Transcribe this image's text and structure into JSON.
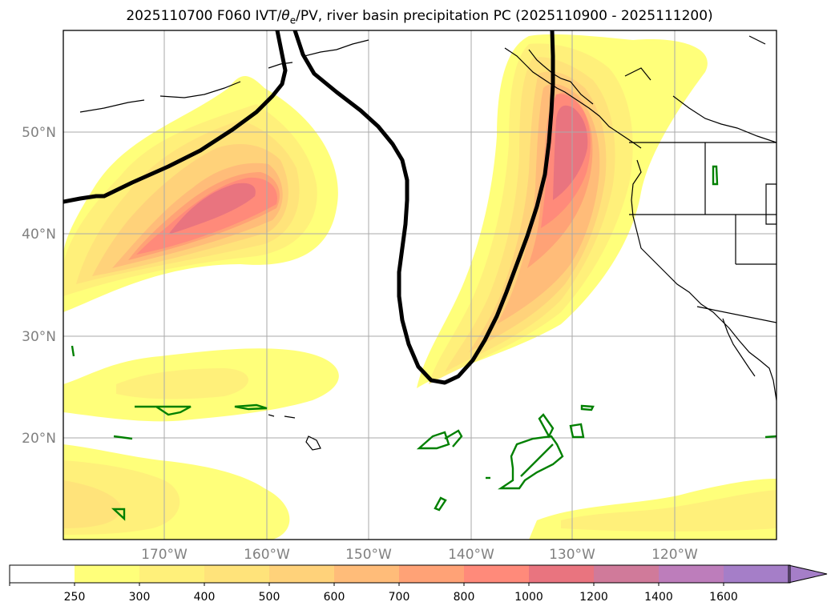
{
  "map": {
    "title": "2025110700 F060 IVT/θe/PV, river basin precipitation PC (2025110900 - 2025111200)",
    "title_parts": {
      "pre": "2025110700 F060 IVT/",
      "theta": "θ",
      "sub": "e",
      "post": "/PV, river basin precipitation PC (2025110900 - 2025111200)"
    },
    "extent": {
      "lon_min": -180,
      "lon_max": -110,
      "lat_min": 10,
      "lat_max": 60
    },
    "longitude_labels": [
      "170°W",
      "160°W",
      "150°W",
      "140°W",
      "130°W",
      "120°W"
    ],
    "latitude_labels": [
      "50°N",
      "40°N",
      "30°N",
      "20°N"
    ],
    "layers": [
      "IVT filled contours",
      "theta-e / PV contour (black)",
      "river basin precipitation contour (green)",
      "coastlines and borders"
    ]
  },
  "colorbar": {
    "ticks": [
      "250",
      "300",
      "400",
      "500",
      "600",
      "700",
      "800",
      "1000",
      "1200",
      "1400",
      "1600"
    ],
    "colors": [
      "#ffffff",
      "#ffff7a",
      "#fff07a",
      "#ffe37a",
      "#ffd27a",
      "#ffbc79",
      "#ffa276",
      "#ff8a7a",
      "#e9747f",
      "#d07a9a",
      "#bd7dbb",
      "#a57ec8"
    ],
    "extend": "max"
  },
  "colors": {
    "frame": "#000000",
    "grid": "#aaaaaa",
    "theta_line": "#000000",
    "basin_contour": "#008000",
    "coast": "#000000"
  }
}
